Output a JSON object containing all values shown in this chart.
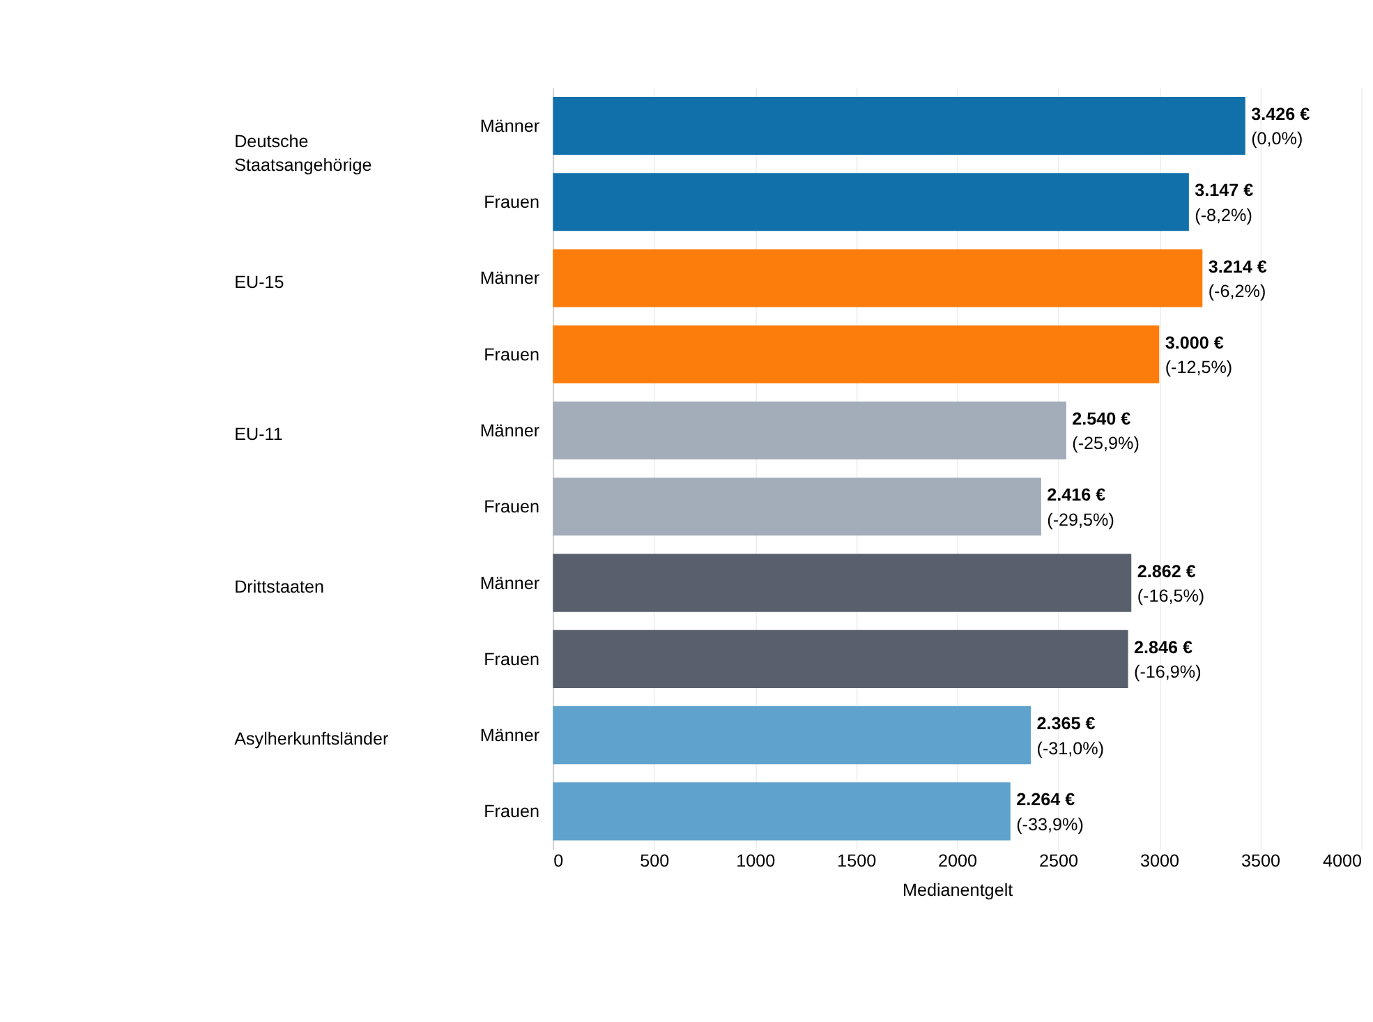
{
  "chart_data": {
    "type": "bar",
    "orientation": "horizontal",
    "xlabel": "Medianentgelt",
    "categories": [
      "Männer",
      "Frauen",
      "Männer",
      "Frauen",
      "Männer",
      "Frauen",
      "Männer",
      "Frauen",
      "Männer",
      "Frauen"
    ],
    "values": [
      3426,
      3147,
      3214,
      3000,
      2540,
      2416,
      2862,
      2846,
      2365,
      2264
    ],
    "colors": [
      "#1170aa",
      "#1170aa",
      "#fc7d0b",
      "#fc7d0b",
      "#a3acb9",
      "#a3acb9",
      "#57606c",
      "#57606c",
      "#5fa2ce",
      "#5fa2ce"
    ],
    "value_labels": [
      "3.426 €\n(0,0%)",
      "3.147 €\n(-8,2%)",
      "3.214 €\n(-6,2%)",
      "3.000 €\n(-12,5%)",
      "2.540 €\n(-25,9%)",
      "2.416 €\n(-29,5%)",
      "2.862 €\n(-16,5%)",
      "2.846 €\n(-16,9%)",
      "2.365 €\n(-31,0%)",
      "2.264 €\n(-33,9%)"
    ],
    "annotations": [
      "Deutsche Staatsangehörige",
      "EU-15",
      "EU-11",
      "Drittstaaten",
      "Asylherkunftsländer"
    ],
    "xlim": [
      0,
      4000
    ],
    "xticks": [
      0,
      500,
      1000,
      1500,
      2000,
      2500,
      3000,
      3500,
      4000
    ],
    "grid": "x"
  }
}
